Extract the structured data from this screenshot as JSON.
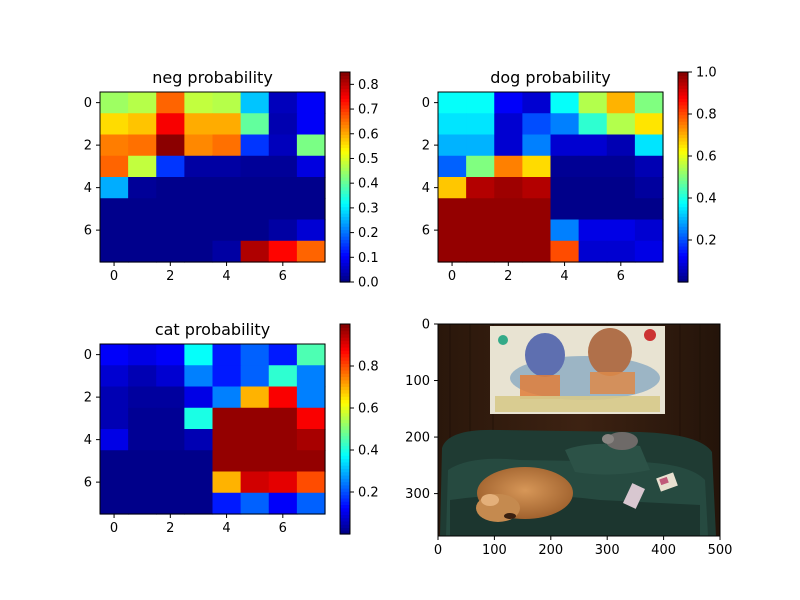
{
  "colormap": "jet",
  "chart_data": [
    {
      "type": "heatmap",
      "title": "neg probability",
      "grid": false,
      "x_ticks": [
        "0",
        "2",
        "4",
        "6"
      ],
      "y_ticks": [
        "0",
        "2",
        "4",
        "6"
      ],
      "colorbar": {
        "range": [
          0.0,
          0.85
        ],
        "ticks": [
          "0.0",
          "0.1",
          "0.2",
          "0.3",
          "0.4",
          "0.5",
          "0.6",
          "0.7",
          "0.8"
        ]
      },
      "values": [
        [
          0.45,
          0.47,
          0.66,
          0.48,
          0.47,
          0.27,
          0.05,
          0.1
        ],
        [
          0.56,
          0.58,
          0.75,
          0.6,
          0.6,
          0.4,
          0.04,
          0.1
        ],
        [
          0.64,
          0.65,
          0.84,
          0.63,
          0.65,
          0.15,
          0.05,
          0.42
        ],
        [
          0.66,
          0.48,
          0.15,
          0.03,
          0.03,
          0.02,
          0.02,
          0.08
        ],
        [
          0.25,
          0.02,
          0.01,
          0.01,
          0.01,
          0.01,
          0.01,
          0.01
        ],
        [
          0.01,
          0.01,
          0.01,
          0.01,
          0.01,
          0.01,
          0.01,
          0.01
        ],
        [
          0.01,
          0.01,
          0.01,
          0.01,
          0.01,
          0.01,
          0.03,
          0.07
        ],
        [
          0.01,
          0.01,
          0.01,
          0.01,
          0.03,
          0.81,
          0.74,
          0.66
        ]
      ]
    },
    {
      "type": "heatmap",
      "title": "dog probability",
      "grid": false,
      "x_ticks": [
        "0",
        "2",
        "4",
        "6"
      ],
      "y_ticks": [
        "0",
        "2",
        "4",
        "6"
      ],
      "colorbar": {
        "range": [
          0.0,
          1.0
        ],
        "ticks": [
          "0.2",
          "0.4",
          "0.6",
          "0.8",
          "1.0"
        ]
      },
      "values": [
        [
          0.38,
          0.38,
          0.12,
          0.08,
          0.38,
          0.55,
          0.7,
          0.5
        ],
        [
          0.35,
          0.35,
          0.08,
          0.2,
          0.25,
          0.42,
          0.55,
          0.65
        ],
        [
          0.3,
          0.3,
          0.08,
          0.25,
          0.08,
          0.08,
          0.05,
          0.35
        ],
        [
          0.22,
          0.5,
          0.75,
          0.66,
          0.02,
          0.02,
          0.02,
          0.05
        ],
        [
          0.68,
          0.95,
          0.97,
          0.95,
          0.01,
          0.01,
          0.01,
          0.03
        ],
        [
          0.98,
          0.98,
          0.98,
          0.98,
          0.01,
          0.01,
          0.01,
          0.01
        ],
        [
          0.98,
          0.98,
          0.98,
          0.98,
          0.25,
          0.1,
          0.1,
          0.08
        ],
        [
          0.98,
          0.98,
          0.98,
          0.98,
          0.8,
          0.08,
          0.08,
          0.1
        ]
      ]
    },
    {
      "type": "heatmap",
      "title": "cat probability",
      "grid": false,
      "x_ticks": [
        "0",
        "2",
        "4",
        "6"
      ],
      "y_ticks": [
        "0",
        "2",
        "4",
        "6"
      ],
      "colorbar": {
        "range": [
          0.0,
          1.0
        ],
        "ticks": [
          "0.2",
          "0.4",
          "0.6",
          "0.8"
        ]
      },
      "values": [
        [
          0.12,
          0.1,
          0.12,
          0.38,
          0.15,
          0.22,
          0.15,
          0.45
        ],
        [
          0.08,
          0.05,
          0.08,
          0.25,
          0.15,
          0.22,
          0.42,
          0.25
        ],
        [
          0.05,
          0.03,
          0.03,
          0.1,
          0.25,
          0.7,
          0.88,
          0.25
        ],
        [
          0.05,
          0.02,
          0.02,
          0.4,
          0.98,
          0.98,
          0.98,
          0.88
        ],
        [
          0.1,
          0.02,
          0.02,
          0.05,
          0.98,
          0.98,
          0.98,
          0.96
        ],
        [
          0.01,
          0.01,
          0.01,
          0.01,
          0.98,
          0.98,
          0.98,
          0.98
        ],
        [
          0.01,
          0.01,
          0.01,
          0.01,
          0.7,
          0.92,
          0.9,
          0.8
        ],
        [
          0.01,
          0.01,
          0.01,
          0.01,
          0.15,
          0.22,
          0.12,
          0.22
        ]
      ]
    },
    {
      "type": "image",
      "x_ticks": [
        "0",
        "100",
        "200",
        "300",
        "400",
        "500"
      ],
      "y_ticks": [
        "0",
        "100",
        "200",
        "300"
      ],
      "xlim": [
        0,
        500
      ],
      "ylim": [
        375,
        0
      ]
    }
  ]
}
